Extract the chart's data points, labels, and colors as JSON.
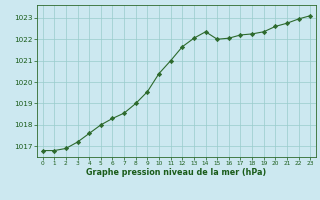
{
  "x": [
    0,
    1,
    2,
    3,
    4,
    5,
    6,
    7,
    8,
    9,
    10,
    11,
    12,
    13,
    14,
    15,
    16,
    17,
    18,
    19,
    20,
    21,
    22,
    23
  ],
  "y": [
    1016.8,
    1016.8,
    1016.9,
    1017.2,
    1017.6,
    1018.0,
    1018.3,
    1018.55,
    1019.0,
    1019.55,
    1020.4,
    1021.0,
    1021.65,
    1022.05,
    1022.35,
    1022.0,
    1022.05,
    1022.2,
    1022.25,
    1022.35,
    1022.6,
    1022.75,
    1022.95,
    1023.1
  ],
  "ylim": [
    1016.5,
    1023.6
  ],
  "yticks": [
    1017,
    1018,
    1019,
    1020,
    1021,
    1022,
    1023
  ],
  "xlim": [
    -0.5,
    23.5
  ],
  "xticks": [
    0,
    1,
    2,
    3,
    4,
    5,
    6,
    7,
    8,
    9,
    10,
    11,
    12,
    13,
    14,
    15,
    16,
    17,
    18,
    19,
    20,
    21,
    22,
    23
  ],
  "xlabel": "Graphe pression niveau de la mer (hPa)",
  "line_color": "#2d6a2d",
  "marker_color": "#2d6a2d",
  "bg_color": "#cce8f0",
  "grid_color": "#99cccc",
  "axis_color": "#2d6a2d",
  "text_color": "#1a5c1a",
  "label_color": "#1a5c1a"
}
